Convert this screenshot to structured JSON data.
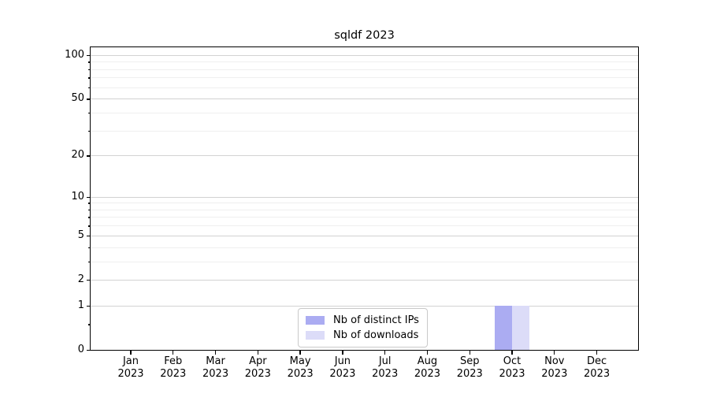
{
  "chart_data": {
    "type": "bar",
    "title": "sqldf 2023",
    "categories": [
      "Jan",
      "Feb",
      "Mar",
      "Apr",
      "May",
      "Jun",
      "Jul",
      "Aug",
      "Sep",
      "Oct",
      "Nov",
      "Dec"
    ],
    "year": "2023",
    "series": [
      {
        "name": "Nb of distinct IPs",
        "color": "#abacf2",
        "values": [
          0,
          0,
          0,
          0,
          0,
          0,
          0,
          0,
          0,
          1,
          0,
          0
        ]
      },
      {
        "name": "Nb of downloads",
        "color": "#dcdcf8",
        "values": [
          0,
          0,
          0,
          0,
          0,
          0,
          0,
          0,
          0,
          1,
          0,
          0
        ]
      }
    ],
    "xlabel": "",
    "ylabel": "",
    "yscale": "log1p",
    "ylim": [
      0,
      113
    ],
    "y_major_ticks": [
      0,
      1,
      2,
      5,
      10,
      20,
      50,
      100
    ],
    "y_minor_ticks": [
      0.5,
      3,
      4,
      6,
      7,
      8,
      9,
      30,
      40,
      60,
      70,
      80,
      90
    ],
    "grid": "horizontal",
    "legend_position": "bottom-center"
  },
  "colors": {
    "grid_major": "#d2d2d2",
    "grid_minor": "#efefef",
    "spine": "#000000",
    "text": "#000000",
    "legend_border": "#c9c9c9"
  }
}
